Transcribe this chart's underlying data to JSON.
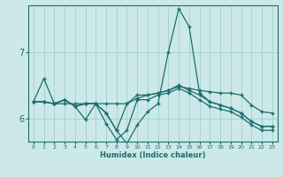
{
  "xlabel": "Humidex (Indice chaleur)",
  "bg_color": "#cce8e8",
  "line_color": "#1a6e6e",
  "grid_color": "#99cccc",
  "xlim": [
    -0.5,
    23.5
  ],
  "ylim": [
    5.65,
    7.7
  ],
  "yticks": [
    6,
    7
  ],
  "xticks": [
    0,
    1,
    2,
    3,
    4,
    5,
    6,
    7,
    8,
    9,
    10,
    11,
    12,
    13,
    14,
    15,
    16,
    17,
    18,
    19,
    20,
    21,
    22,
    23
  ],
  "lines": [
    [
      6.25,
      6.6,
      6.22,
      6.22,
      6.22,
      6.22,
      6.22,
      6.22,
      6.22,
      6.22,
      6.3,
      6.35,
      6.38,
      6.42,
      6.48,
      6.45,
      6.42,
      6.4,
      6.38,
      6.38,
      6.35,
      6.2,
      6.1,
      6.08
    ],
    [
      6.25,
      6.25,
      6.22,
      6.28,
      6.18,
      6.22,
      6.22,
      6.08,
      5.82,
      5.62,
      5.9,
      6.1,
      6.22,
      7.0,
      7.65,
      7.38,
      6.38,
      6.25,
      6.2,
      6.15,
      6.08,
      5.95,
      5.88,
      5.88
    ],
    [
      6.25,
      6.25,
      6.22,
      6.28,
      6.18,
      6.22,
      6.22,
      6.08,
      5.82,
      6.22,
      6.35,
      6.35,
      6.38,
      6.42,
      6.5,
      6.42,
      6.35,
      6.25,
      6.2,
      6.15,
      6.08,
      5.95,
      5.88,
      5.88
    ],
    [
      6.25,
      6.25,
      6.22,
      6.28,
      6.18,
      5.98,
      6.22,
      5.92,
      5.68,
      5.82,
      6.28,
      6.28,
      6.35,
      6.38,
      6.45,
      6.38,
      6.28,
      6.18,
      6.14,
      6.1,
      6.02,
      5.9,
      5.82,
      5.82
    ]
  ]
}
